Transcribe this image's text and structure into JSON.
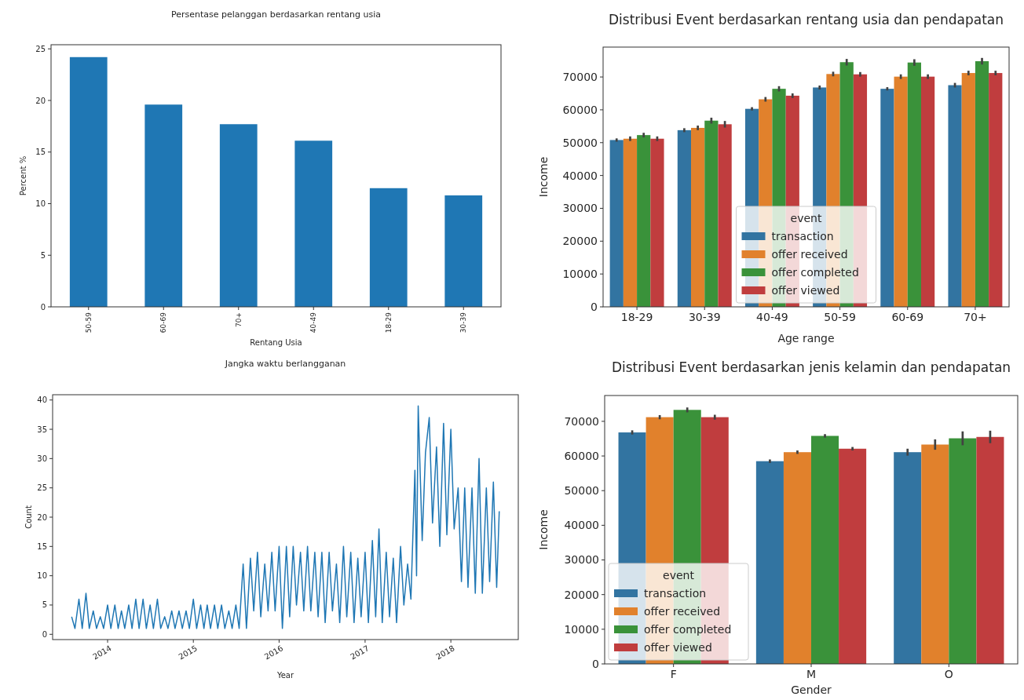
{
  "chart_data": [
    {
      "type": "bar",
      "title": "Persentase pelanggan berdasarkan rentang usia",
      "xlabel": "Rentang Usia",
      "ylabel": "Percent %",
      "categories": [
        "50-59",
        "60-69",
        "70+",
        "40-49",
        "18-29",
        "30-39"
      ],
      "values": [
        24.2,
        19.6,
        17.7,
        16.1,
        11.5,
        10.8
      ],
      "color": "#1f77b4",
      "ylim": [
        0,
        25.4
      ],
      "yticks": [
        0,
        5,
        10,
        15,
        20,
        25
      ],
      "grid": false,
      "legend": false
    },
    {
      "type": "bar",
      "title": "Distribusi Event berdasarkan rentang usia dan pendapatan",
      "xlabel": "Age range",
      "ylabel": "Income",
      "legend_title": "event",
      "legend": "bottom",
      "categories": [
        "18-29",
        "30-39",
        "40-49",
        "50-59",
        "60-69",
        "70+"
      ],
      "ylim": [
        0,
        79100
      ],
      "yticks": [
        0,
        10000,
        20000,
        30000,
        40000,
        50000,
        60000,
        70000
      ],
      "grid": false,
      "series": [
        {
          "name": "transaction",
          "color": "#3274a1",
          "values": [
            50800,
            53800,
            60300,
            66800,
            66400,
            67500
          ],
          "errors": [
            500,
            600,
            500,
            600,
            500,
            700
          ]
        },
        {
          "name": "offer received",
          "color": "#e1812c",
          "values": [
            51200,
            54500,
            63200,
            70900,
            70100,
            71200
          ],
          "errors": [
            700,
            700,
            700,
            700,
            700,
            700
          ]
        },
        {
          "name": "offer completed",
          "color": "#3a923a",
          "values": [
            52300,
            56700,
            66400,
            74500,
            74400,
            74800
          ],
          "errors": [
            700,
            900,
            800,
            1000,
            1000,
            1000
          ]
        },
        {
          "name": "offer viewed",
          "color": "#c03d3e",
          "values": [
            51200,
            55600,
            64300,
            70800,
            70100,
            71200
          ],
          "errors": [
            700,
            1000,
            700,
            700,
            700,
            700
          ]
        }
      ]
    },
    {
      "type": "line",
      "title": "Jangka waktu berlangganan",
      "xlabel": "Year",
      "ylabel": "Count",
      "xlim": [
        "2013-05-12",
        "2018-10-15"
      ],
      "xticks": [
        "2014",
        "2015",
        "2016",
        "2017",
        "2018"
      ],
      "ylim": [
        -0.9,
        40.9
      ],
      "yticks": [
        0,
        5,
        10,
        15,
        20,
        25,
        30,
        35,
        40
      ],
      "grid": false,
      "legend": false,
      "series": [
        {
          "color": "#1f77b4",
          "x": [
            "2013-08-01",
            "2013-08-15",
            "2013-09-01",
            "2013-09-15",
            "2013-10-01",
            "2013-10-15",
            "2013-11-01",
            "2013-11-15",
            "2013-12-01",
            "2013-12-15",
            "2014-01-01",
            "2014-01-15",
            "2014-02-01",
            "2014-02-15",
            "2014-03-01",
            "2014-03-15",
            "2014-04-01",
            "2014-04-15",
            "2014-05-01",
            "2014-05-15",
            "2014-06-01",
            "2014-06-15",
            "2014-07-01",
            "2014-07-15",
            "2014-08-01",
            "2014-08-15",
            "2014-09-01",
            "2014-09-15",
            "2014-10-01",
            "2014-10-15",
            "2014-11-01",
            "2014-11-15",
            "2014-12-01",
            "2014-12-15",
            "2015-01-01",
            "2015-01-15",
            "2015-02-01",
            "2015-02-15",
            "2015-03-01",
            "2015-03-15",
            "2015-04-01",
            "2015-04-15",
            "2015-05-01",
            "2015-05-15",
            "2015-06-01",
            "2015-06-15",
            "2015-07-01",
            "2015-07-15",
            "2015-08-01",
            "2015-08-15",
            "2015-09-01",
            "2015-09-15",
            "2015-10-01",
            "2015-10-15",
            "2015-11-01",
            "2015-11-15",
            "2015-12-01",
            "2015-12-15",
            "2016-01-01",
            "2016-01-15",
            "2016-02-01",
            "2016-02-15",
            "2016-03-01",
            "2016-03-15",
            "2016-04-01",
            "2016-04-15",
            "2016-05-01",
            "2016-05-15",
            "2016-06-01",
            "2016-06-15",
            "2016-07-01",
            "2016-07-15",
            "2016-08-01",
            "2016-08-15",
            "2016-09-01",
            "2016-09-15",
            "2016-10-01",
            "2016-10-15",
            "2016-11-01",
            "2016-11-15",
            "2016-12-01",
            "2016-12-15",
            "2017-01-01",
            "2017-01-15",
            "2017-02-01",
            "2017-02-15",
            "2017-03-01",
            "2017-03-15",
            "2017-04-01",
            "2017-04-15",
            "2017-05-01",
            "2017-05-15",
            "2017-06-01",
            "2017-06-15",
            "2017-07-01",
            "2017-07-15",
            "2017-08-01",
            "2017-08-08",
            "2017-08-15",
            "2017-09-01",
            "2017-09-15",
            "2017-10-01",
            "2017-10-15",
            "2017-11-01",
            "2017-11-15",
            "2017-12-01",
            "2017-12-15",
            "2018-01-01",
            "2018-01-15",
            "2018-02-01",
            "2018-02-15",
            "2018-03-01",
            "2018-03-15",
            "2018-04-01",
            "2018-04-15",
            "2018-05-01",
            "2018-05-15",
            "2018-06-01",
            "2018-06-15",
            "2018-07-01",
            "2018-07-15",
            "2018-07-26"
          ],
          "values": [
            3,
            1,
            6,
            1,
            7,
            1,
            4,
            1,
            3,
            1,
            5,
            1,
            5,
            1,
            4,
            1,
            5,
            1,
            6,
            1,
            6,
            1,
            5,
            1,
            6,
            1,
            3,
            1,
            4,
            1,
            4,
            1,
            4,
            1,
            6,
            1,
            5,
            1,
            5,
            1,
            5,
            1,
            5,
            1,
            4,
            1,
            5,
            1,
            12,
            1,
            13,
            4,
            14,
            3,
            12,
            4,
            14,
            4,
            15,
            1,
            15,
            3,
            15,
            5,
            14,
            4,
            15,
            4,
            14,
            3,
            14,
            2,
            14,
            4,
            12,
            2,
            15,
            3,
            14,
            2,
            13,
            3,
            14,
            2,
            16,
            3,
            18,
            2,
            14,
            3,
            13,
            2,
            15,
            5,
            12,
            6,
            28,
            10,
            39,
            16,
            31,
            37,
            19,
            32,
            15,
            36,
            17,
            35,
            18,
            25,
            9,
            25,
            8,
            25,
            7,
            30,
            7,
            25,
            9,
            26,
            8,
            21
          ]
        }
      ]
    },
    {
      "type": "bar",
      "title": "Distribusi Event berdasarkan jenis kelamin dan pendapatan",
      "xlabel": "Gender",
      "ylabel": "Income",
      "legend_title": "event",
      "legend": "bottom left",
      "categories": [
        "F",
        "M",
        "O"
      ],
      "ylim": [
        0,
        77450
      ],
      "yticks": [
        0,
        10000,
        20000,
        30000,
        40000,
        50000,
        60000,
        70000
      ],
      "grid": false,
      "series": [
        {
          "name": "transaction",
          "color": "#3274a1",
          "values": [
            66800,
            58500,
            61100
          ],
          "errors": [
            600,
            500,
            1000
          ]
        },
        {
          "name": "offer received",
          "color": "#e1812c",
          "values": [
            71200,
            61100,
            63300
          ],
          "errors": [
            600,
            500,
            1500
          ]
        },
        {
          "name": "offer completed",
          "color": "#3a923a",
          "values": [
            73300,
            65800,
            65100
          ],
          "errors": [
            700,
            500,
            2000
          ]
        },
        {
          "name": "offer viewed",
          "color": "#c03d3e",
          "values": [
            71200,
            62100,
            65500
          ],
          "errors": [
            700,
            500,
            1800
          ]
        }
      ]
    }
  ]
}
